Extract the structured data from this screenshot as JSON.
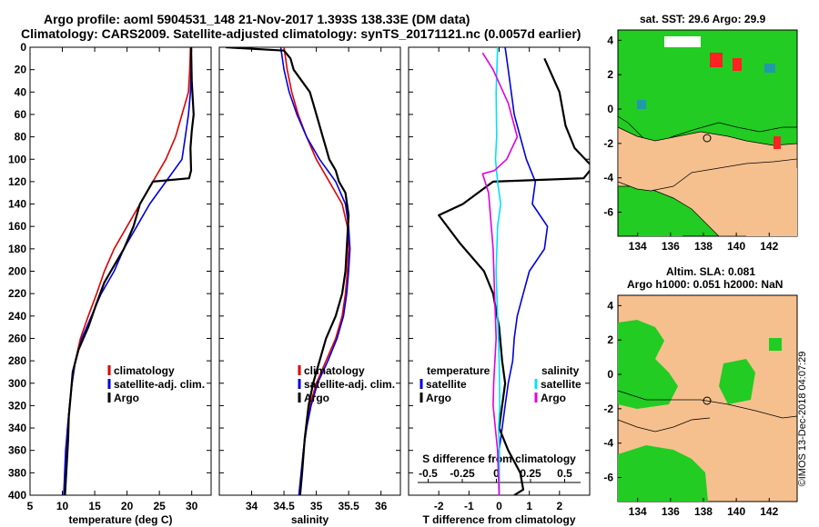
{
  "header": {
    "line1": "Argo profile: aoml 5904531_148 21-Nov-2017 1.393S 138.33E (DM data)",
    "line2": "Climatology: CARS2009. Satellite-adjusted climatology: synTS_20171121.nc (0.0057d earlier)"
  },
  "map_top": {
    "title": "sat. SST: 29.6 Argo: 29.9"
  },
  "map_bottom": {
    "title1": "Altim. SLA: 0.081",
    "title2": "Argo h1000: 0.051 h2000: NaN"
  },
  "side_stamp": "©IMOS 13-Dec-2018 04:07:29",
  "legend_left": {
    "climatology": "climatology",
    "satellite": "satellite-adj. clim.",
    "argo": "Argo"
  },
  "legend_mid": {
    "climatology": "climatology",
    "satellite": "satellite-adj. clim.",
    "argo": "Argo"
  },
  "legend_right": {
    "temp_head": "temperature",
    "sal_head": "salinity",
    "temp_sat": "satellite",
    "temp_argo": "Argo",
    "sal_sat": "satellite",
    "sal_argo": "Argo"
  },
  "colors": {
    "climatology": "#e00000",
    "satellite": "#0000e0",
    "argo": "#000000",
    "s_satellite": "#00e0ff",
    "s_argo": "#e000e0",
    "land": "#f5c08e",
    "ocean_green": "#22cc22",
    "ocean_blue": "#2299aa"
  },
  "chart_data": [
    {
      "type": "line",
      "xlabel": "temperature (deg C)",
      "ylabel": "",
      "xlim": [
        5,
        33
      ],
      "ylim": [
        400,
        0
      ],
      "xticks": [
        "5",
        "10",
        "15",
        "20",
        "25",
        "30"
      ],
      "xtick_values": [
        5,
        10,
        15,
        20,
        25,
        30
      ],
      "yticks": [
        "0",
        "20",
        "40",
        "60",
        "80",
        "100",
        "120",
        "140",
        "160",
        "180",
        "200",
        "220",
        "240",
        "260",
        "280",
        "300",
        "320",
        "340",
        "360",
        "380",
        "400"
      ],
      "ytick_values": [
        0,
        20,
        40,
        60,
        80,
        100,
        120,
        140,
        160,
        180,
        200,
        220,
        240,
        260,
        280,
        300,
        320,
        340,
        360,
        380,
        400
      ],
      "series": [
        {
          "name": "climatology",
          "color": "#e00000",
          "x": [
            29.8,
            29.7,
            29.5,
            28.5,
            27.5,
            26,
            24,
            22,
            20,
            18,
            16.5,
            15.3,
            14,
            12.8,
            12,
            11.5,
            11.1,
            10.8,
            10.6,
            10.3
          ],
          "y": [
            0,
            20,
            40,
            60,
            80,
            100,
            120,
            140,
            160,
            180,
            200,
            220,
            240,
            260,
            280,
            300,
            320,
            340,
            360,
            400
          ]
        },
        {
          "name": "satellite-adj. clim.",
          "color": "#0000e0",
          "x": [
            29.9,
            29.9,
            29.8,
            29.5,
            29,
            28.5,
            26,
            23.5,
            21.5,
            19.5,
            18,
            16,
            14.5,
            13,
            12,
            11.5,
            11.1,
            10.8,
            10.5,
            10.2
          ],
          "y": [
            0,
            20,
            40,
            60,
            80,
            100,
            120,
            140,
            160,
            180,
            200,
            220,
            240,
            260,
            280,
            300,
            320,
            340,
            360,
            400
          ]
        },
        {
          "name": "Argo",
          "color": "#000000",
          "x": [
            29.9,
            30.0,
            30.3,
            30.0,
            29.8,
            29.9,
            29.6,
            24,
            22,
            21,
            19.5,
            17.5,
            16.5,
            15.2,
            14,
            12.5,
            11.6,
            11.3,
            11.0,
            10.9,
            10.7,
            10.5,
            10.4
          ],
          "y": [
            0,
            30,
            60,
            75,
            90,
            110,
            117,
            120,
            140,
            160,
            180,
            200,
            210,
            230,
            250,
            270,
            290,
            310,
            330,
            350,
            370,
            390,
            400
          ]
        }
      ]
    },
    {
      "type": "line",
      "xlabel": "salinity",
      "xlim": [
        33.5,
        36.3
      ],
      "ylim": [
        400,
        0
      ],
      "xticks": [
        "34",
        "34.5",
        "35",
        "35.5",
        "36"
      ],
      "xtick_values": [
        34,
        34.5,
        35,
        35.5,
        36
      ],
      "series": [
        {
          "name": "climatology",
          "color": "#e00000",
          "x": [
            34.5,
            34.55,
            34.62,
            34.72,
            34.85,
            35.0,
            35.2,
            35.4,
            35.48,
            35.5,
            35.48,
            35.45,
            35.4,
            35.3,
            35.15,
            35.0,
            34.9,
            34.85,
            34.8,
            34.75
          ],
          "y": [
            0,
            20,
            40,
            60,
            80,
            100,
            120,
            140,
            160,
            180,
            200,
            220,
            240,
            260,
            280,
            300,
            320,
            340,
            360,
            400
          ]
        },
        {
          "name": "satellite-adj. clim.",
          "color": "#0000e0",
          "x": [
            34.45,
            34.5,
            34.58,
            34.7,
            34.85,
            35.05,
            35.3,
            35.45,
            35.5,
            35.52,
            35.5,
            35.47,
            35.42,
            35.32,
            35.18,
            35.02,
            34.92,
            34.85,
            34.8,
            34.73
          ],
          "y": [
            0,
            20,
            40,
            60,
            80,
            100,
            120,
            140,
            160,
            180,
            200,
            220,
            240,
            260,
            280,
            300,
            320,
            340,
            360,
            400
          ]
        },
        {
          "name": "Argo",
          "color": "#000000",
          "x": [
            33.6,
            34.5,
            34.6,
            34.65,
            34.9,
            34.95,
            35.05,
            35.1,
            35.15,
            35.2,
            35.3,
            35.35,
            35.45,
            35.5,
            35.48,
            35.45,
            35.4,
            35.3,
            35.15,
            35.05,
            34.95,
            34.88,
            34.82,
            34.78,
            34.75
          ],
          "y": [
            0,
            3,
            10,
            20,
            40,
            50,
            70,
            80,
            90,
            100,
            110,
            120,
            130,
            150,
            170,
            200,
            220,
            240,
            260,
            280,
            300,
            320,
            350,
            380,
            400
          ]
        }
      ]
    },
    {
      "type": "line",
      "xlabel": "T difference from climatology",
      "second_axis_label": "S difference from climatology",
      "xlim": [
        -3,
        3
      ],
      "ylim": [
        400,
        0
      ],
      "xticks": [
        "-2",
        "-1",
        "0",
        "1",
        "2"
      ],
      "xtick_values": [
        -2,
        -1,
        0,
        1,
        2
      ],
      "top_ticks": [
        "-0.5",
        "-0.25",
        "0",
        "0.25",
        "0.5"
      ],
      "series": [
        {
          "name": "temperature satellite",
          "color": "#0000e0",
          "x": [
            0.2,
            0.3,
            0.4,
            0.5,
            0.7,
            0.9,
            1.2,
            1.1,
            1.6,
            1.5,
            1.0,
            0.8,
            0.6,
            0.5,
            0.45,
            0.3,
            0.2,
            0.1,
            0.0,
            0.0
          ],
          "y": [
            0,
            20,
            40,
            60,
            80,
            100,
            120,
            140,
            160,
            180,
            200,
            220,
            240,
            260,
            280,
            300,
            320,
            340,
            360,
            400
          ]
        },
        {
          "name": "temperature Argo",
          "color": "#000000",
          "x": [
            1.5,
            2.0,
            2.2,
            2.5,
            3.1,
            2.8,
            -0.2,
            -1.2,
            -2.0,
            -1.3,
            -0.5,
            -0.2,
            0.0,
            0.1,
            0.2,
            0.1,
            0.0,
            0.3,
            0.7,
            0.8,
            0.5
          ],
          "y": [
            10,
            40,
            70,
            90,
            107,
            117,
            120,
            140,
            150,
            175,
            200,
            220,
            250,
            280,
            300,
            320,
            340,
            360,
            380,
            395,
            400
          ]
        },
        {
          "name": "salinity satellite",
          "color": "#00e0ff",
          "x": [
            -0.05,
            -0.1,
            -0.08,
            -0.12,
            -0.05,
            0.05,
            -0.05,
            -0.1,
            -0.05,
            0.0,
            0.02,
            -0.02,
            0.01,
            0.0
          ],
          "y": [
            0,
            40,
            80,
            100,
            120,
            140,
            160,
            200,
            240,
            280,
            320,
            340,
            360,
            400
          ]
        },
        {
          "name": "salinity Argo",
          "color": "#e000e0",
          "x": [
            -0.55,
            -0.2,
            0.3,
            0.6,
            0.25,
            -0.15,
            -0.55,
            -0.35,
            -0.2,
            -0.15,
            -0.1,
            -0.18,
            -0.2,
            -0.05,
            0.0
          ],
          "y": [
            5,
            20,
            50,
            80,
            100,
            110,
            113,
            130,
            180,
            220,
            260,
            300,
            320,
            360,
            400
          ]
        }
      ]
    }
  ],
  "maps": [
    {
      "type": "map",
      "xticks": [
        "134",
        "136",
        "138",
        "140",
        "142"
      ],
      "yticks": [
        "4",
        "2",
        "0",
        "-2",
        "-4",
        "-6"
      ]
    },
    {
      "type": "map",
      "xticks": [
        "134",
        "136",
        "138",
        "140",
        "142"
      ],
      "yticks": [
        "4",
        "2",
        "0",
        "-2",
        "-4",
        "-6"
      ]
    }
  ]
}
